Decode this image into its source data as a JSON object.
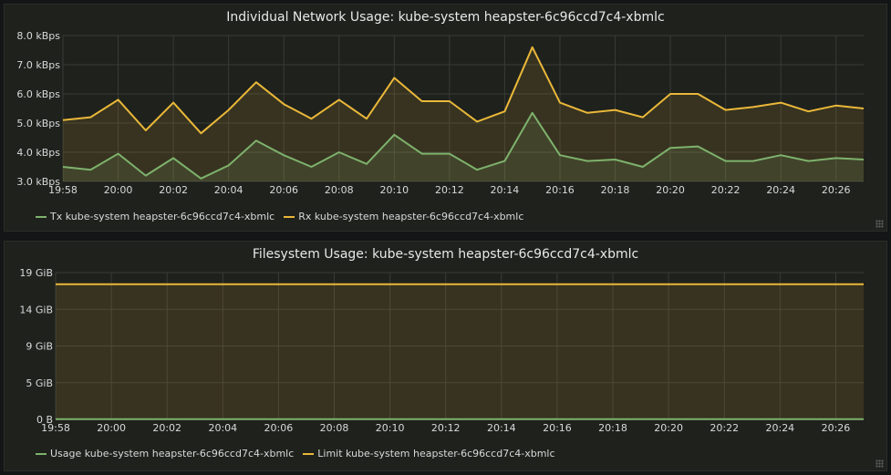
{
  "colors": {
    "tx": "#7eb26d",
    "rx": "#eab839",
    "grid": "#393b35",
    "background": "#1f211d"
  },
  "panels": [
    {
      "title": "Individual Network Usage: kube-system heapster-6c96ccd7c4-xbmlc",
      "legend": [
        {
          "label": "Tx kube-system heapster-6c96ccd7c4-xbmlc",
          "color": "#7eb26d"
        },
        {
          "label": "Rx kube-system heapster-6c96ccd7c4-xbmlc",
          "color": "#eab839"
        }
      ]
    },
    {
      "title": "Filesystem Usage: kube-system heapster-6c96ccd7c4-xbmlc",
      "legend": [
        {
          "label": "Usage kube-system heapster-6c96ccd7c4-xbmlc",
          "color": "#7eb26d"
        },
        {
          "label": "Limit kube-system heapster-6c96ccd7c4-xbmlc",
          "color": "#eab839"
        }
      ]
    }
  ],
  "chart_data": [
    {
      "type": "area",
      "title": "Individual Network Usage: kube-system heapster-6c96ccd7c4-xbmlc",
      "x": [
        "19:58",
        "19:59",
        "20:00",
        "20:01",
        "20:02",
        "20:03",
        "20:04",
        "20:05",
        "20:06",
        "20:07",
        "20:08",
        "20:09",
        "20:10",
        "20:11",
        "20:12",
        "20:13",
        "20:14",
        "20:15",
        "20:16",
        "20:17",
        "20:18",
        "20:19",
        "20:20",
        "20:21",
        "20:22",
        "20:23",
        "20:24",
        "20:25",
        "20:26",
        "20:27"
      ],
      "x_ticks": [
        "19:58",
        "20:00",
        "20:02",
        "20:04",
        "20:06",
        "20:08",
        "20:10",
        "20:12",
        "20:14",
        "20:16",
        "20:18",
        "20:20",
        "20:22",
        "20:24",
        "20:26"
      ],
      "y_ticks": [
        "3.0 kBps",
        "4.0 kBps",
        "5.0 kBps",
        "6.0 kBps",
        "7.0 kBps",
        "8.0 kBps"
      ],
      "ylim": [
        3.0,
        8.0
      ],
      "series": [
        {
          "name": "Tx kube-system heapster-6c96ccd7c4-xbmlc",
          "values": [
            3.5,
            3.4,
            3.95,
            3.2,
            3.8,
            3.1,
            3.55,
            4.4,
            3.9,
            3.5,
            4.0,
            3.6,
            4.6,
            3.95,
            3.95,
            3.4,
            3.7,
            5.35,
            3.9,
            3.7,
            3.75,
            3.5,
            4.15,
            4.2,
            3.7,
            3.7,
            3.9,
            3.7,
            3.8,
            3.75
          ]
        },
        {
          "name": "Rx kube-system heapster-6c96ccd7c4-xbmlc",
          "values": [
            5.1,
            5.2,
            5.8,
            4.75,
            5.7,
            4.65,
            5.45,
            6.4,
            5.65,
            5.15,
            5.8,
            5.15,
            6.55,
            5.75,
            5.75,
            5.05,
            5.4,
            7.6,
            5.7,
            5.35,
            5.45,
            5.2,
            6.0,
            6.0,
            5.45,
            5.55,
            5.7,
            5.4,
            5.6,
            5.5
          ]
        }
      ],
      "grid": true,
      "legend_position": "bottom-left"
    },
    {
      "type": "area",
      "title": "Filesystem Usage: kube-system heapster-6c96ccd7c4-xbmlc",
      "x": [
        "19:58",
        "19:59",
        "20:00",
        "20:01",
        "20:02",
        "20:03",
        "20:04",
        "20:05",
        "20:06",
        "20:07",
        "20:08",
        "20:09",
        "20:10",
        "20:11",
        "20:12",
        "20:13",
        "20:14",
        "20:15",
        "20:16",
        "20:17",
        "20:18",
        "20:19",
        "20:20",
        "20:21",
        "20:22",
        "20:23",
        "20:24",
        "20:25",
        "20:26",
        "20:27"
      ],
      "x_ticks": [
        "19:58",
        "20:00",
        "20:02",
        "20:04",
        "20:06",
        "20:08",
        "20:10",
        "20:12",
        "20:14",
        "20:16",
        "20:18",
        "20:20",
        "20:22",
        "20:24",
        "20:26"
      ],
      "y_ticks": [
        "0 B",
        "5 GiB",
        "9 GiB",
        "14 GiB",
        "19 GiB"
      ],
      "ylim": [
        0,
        19
      ],
      "series": [
        {
          "name": "Usage kube-system heapster-6c96ccd7c4-xbmlc",
          "values": [
            0.02,
            0.02,
            0.02,
            0.02,
            0.02,
            0.02,
            0.02,
            0.02,
            0.02,
            0.02,
            0.02,
            0.02,
            0.02,
            0.02,
            0.02,
            0.02,
            0.02,
            0.02,
            0.02,
            0.02,
            0.02,
            0.02,
            0.02,
            0.02,
            0.02,
            0.02,
            0.02,
            0.02,
            0.02,
            0.02
          ]
        },
        {
          "name": "Limit kube-system heapster-6c96ccd7c4-xbmlc",
          "values": [
            17.5,
            17.5,
            17.5,
            17.5,
            17.5,
            17.5,
            17.5,
            17.5,
            17.5,
            17.5,
            17.5,
            17.5,
            17.5,
            17.5,
            17.5,
            17.5,
            17.5,
            17.5,
            17.5,
            17.5,
            17.5,
            17.5,
            17.5,
            17.5,
            17.5,
            17.5,
            17.5,
            17.5,
            17.5,
            17.5
          ]
        }
      ],
      "grid": true,
      "legend_position": "bottom-left"
    }
  ]
}
